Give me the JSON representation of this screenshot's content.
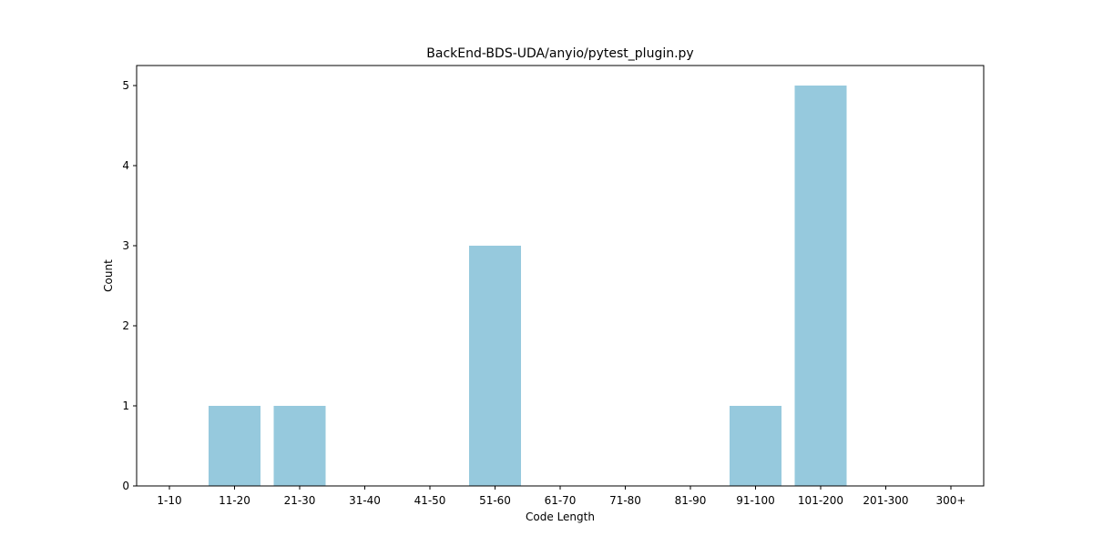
{
  "chart_data": {
    "type": "bar",
    "title": "BackEnd-BDS-UDA/anyio/pytest_plugin.py",
    "xlabel": "Code Length",
    "ylabel": "Count",
    "categories": [
      "1-10",
      "11-20",
      "21-30",
      "31-40",
      "41-50",
      "51-60",
      "61-70",
      "71-80",
      "81-90",
      "91-100",
      "101-200",
      "201-300",
      "300+"
    ],
    "values": [
      0,
      1,
      1,
      0,
      0,
      3,
      0,
      0,
      0,
      1,
      5,
      0,
      0
    ],
    "ylim": [
      0,
      5.25
    ],
    "yticks": [
      0,
      1,
      2,
      3,
      4,
      5
    ],
    "grid": false,
    "bar_color": "#96c9dd"
  }
}
